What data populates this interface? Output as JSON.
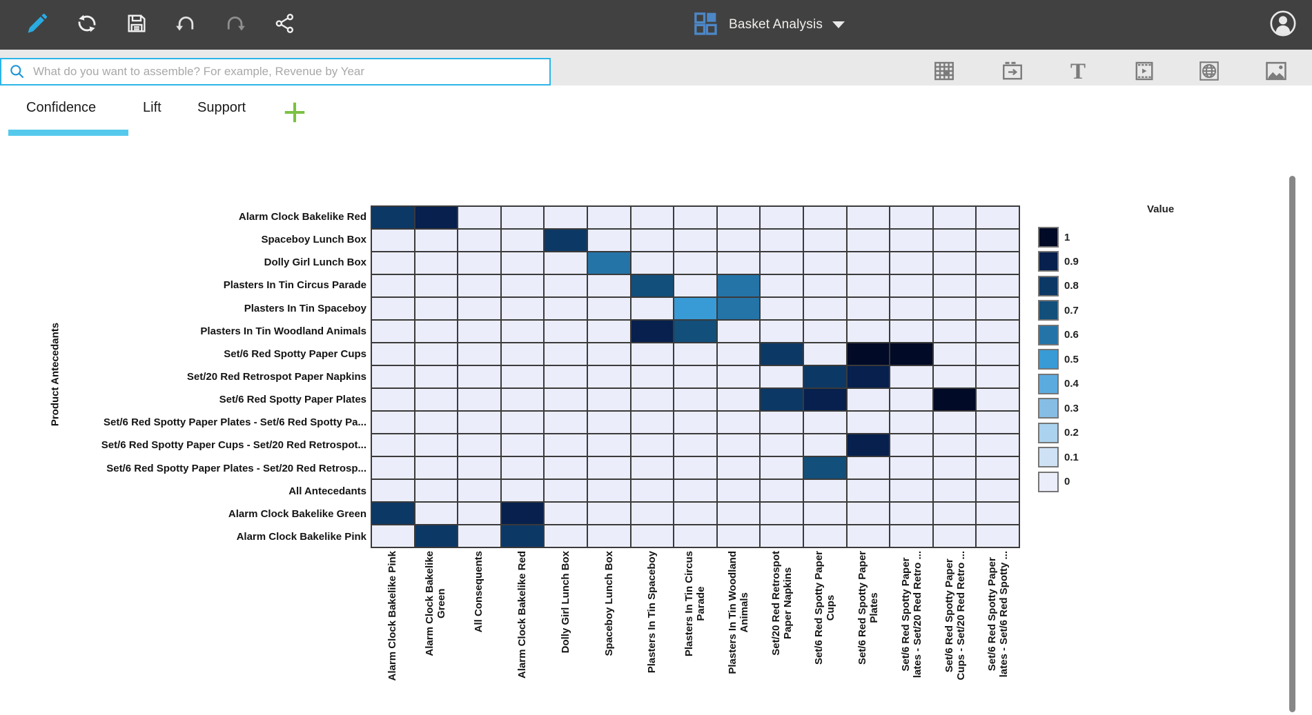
{
  "toolbar": {
    "title": "Basket Analysis",
    "title_icon": "dashboard-grid-icon",
    "icons": [
      "edit-icon",
      "refresh-icon",
      "save-icon",
      "undo-icon",
      "redo-icon",
      "share-icon"
    ],
    "user_icon": "avatar-icon"
  },
  "search": {
    "placeholder": "What do you want to assemble? For example, Revenue by Year",
    "icon": "search-icon",
    "value": ""
  },
  "ribbon_icons": [
    "table-icon",
    "navigation-panel-icon",
    "text-icon",
    "media-icon",
    "web-page-icon",
    "image-icon"
  ],
  "tabs": {
    "items": [
      {
        "label": "Confidence",
        "active": true
      },
      {
        "label": "Lift",
        "active": false
      },
      {
        "label": "Support",
        "active": false
      }
    ],
    "add_tab_icon": "plus-icon"
  },
  "colors": {
    "accent_cyan": "#2cb5e8",
    "tab_underline": "#55c9ec",
    "plus_green": "#7cc143",
    "toolbar_bg": "#414141",
    "band_bg": "#e9e9e9",
    "grid_line": "#3a3a3a"
  },
  "chart_data": {
    "type": "heatmap",
    "y_axis_label": "Product Antecedants",
    "legend_title": "Value",
    "legend_position": "right",
    "value_range": [
      0,
      1
    ],
    "rows": [
      "Alarm Clock Bakelike Red",
      "Spaceboy Lunch Box",
      "Dolly Girl Lunch Box",
      "Plasters In Tin Circus Parade",
      "Plasters In Tin Spaceboy",
      "Plasters In Tin Woodland Animals",
      "Set/6 Red Spotty Paper Cups",
      "Set/20 Red Retrospot Paper Napkins",
      "Set/6 Red Spotty Paper Plates",
      "Set/6 Red Spotty Paper Plates - Set/6 Red Spotty Pa...",
      "Set/6 Red Spotty Paper Cups - Set/20 Red Retrospot...",
      "Set/6 Red Spotty Paper Plates - Set/20 Red Retrosp...",
      "All Antecedants",
      "Alarm Clock Bakelike Green",
      "Alarm Clock Bakelike Pink"
    ],
    "columns": [
      [
        "Alarm Clock Bakelike Pink"
      ],
      [
        "Alarm Clock Bakelike",
        "Green"
      ],
      [
        "All Consequents"
      ],
      [
        "Alarm Clock Bakelike Red"
      ],
      [
        "Dolly Girl Lunch Box"
      ],
      [
        "Spaceboy Lunch Box"
      ],
      [
        "Plasters In Tin Spaceboy"
      ],
      [
        "Plasters In Tin Circus",
        "Parade"
      ],
      [
        "Plasters In Tin Woodland",
        "Animals"
      ],
      [
        "Set/20 Red Retrospot",
        "Paper Napkins"
      ],
      [
        "Set/6 Red Spotty Paper",
        "Cups"
      ],
      [
        "Set/6 Red Spotty Paper",
        "Plates"
      ],
      [
        "Set/6 Red Spotty Paper",
        "lates - Set/20 Red Retro ..."
      ],
      [
        "Set/6 Red Spotty Paper",
        "Cups - Set/20 Red Retro ..."
      ],
      [
        "Set/6 Red Spotty Paper",
        "lates - Set/6 Red Spotty ..."
      ]
    ],
    "legend_values": [
      "1",
      "0.9",
      "0.8",
      "0.7",
      "0.6",
      "0.5",
      "0.4",
      "0.3",
      "0.2",
      "0.1",
      "0"
    ],
    "palette": {
      "1": "#010a26",
      "0.9": "#07204e",
      "0.8": "#0c3866",
      "0.7": "#124f7b",
      "0.6": "#2474a8",
      "0.5": "#389bd6",
      "0.4": "#5cabdf",
      "0.3": "#86bde4",
      "0.2": "#abd2ee",
      "0.1": "#cfe2f5",
      "0": "#ebedfa"
    },
    "cells": [
      {
        "r": 0,
        "c": 0,
        "v": 0.8
      },
      {
        "r": 0,
        "c": 1,
        "v": 0.9
      },
      {
        "r": 1,
        "c": 4,
        "v": 0.8
      },
      {
        "r": 2,
        "c": 5,
        "v": 0.6
      },
      {
        "r": 3,
        "c": 6,
        "v": 0.7
      },
      {
        "r": 3,
        "c": 8,
        "v": 0.6
      },
      {
        "r": 4,
        "c": 7,
        "v": 0.5
      },
      {
        "r": 4,
        "c": 8,
        "v": 0.6
      },
      {
        "r": 5,
        "c": 6,
        "v": 0.9
      },
      {
        "r": 5,
        "c": 7,
        "v": 0.7
      },
      {
        "r": 6,
        "c": 9,
        "v": 0.8
      },
      {
        "r": 6,
        "c": 11,
        "v": 1
      },
      {
        "r": 6,
        "c": 12,
        "v": 1
      },
      {
        "r": 7,
        "c": 10,
        "v": 0.8
      },
      {
        "r": 7,
        "c": 11,
        "v": 0.9
      },
      {
        "r": 8,
        "c": 9,
        "v": 0.8
      },
      {
        "r": 8,
        "c": 10,
        "v": 0.9
      },
      {
        "r": 8,
        "c": 13,
        "v": 1
      },
      {
        "r": 10,
        "c": 11,
        "v": 0.9
      },
      {
        "r": 11,
        "c": 10,
        "v": 0.7
      },
      {
        "r": 13,
        "c": 0,
        "v": 0.8
      },
      {
        "r": 13,
        "c": 3,
        "v": 0.9
      },
      {
        "r": 14,
        "c": 1,
        "v": 0.8
      },
      {
        "r": 14,
        "c": 3,
        "v": 0.8
      }
    ]
  }
}
